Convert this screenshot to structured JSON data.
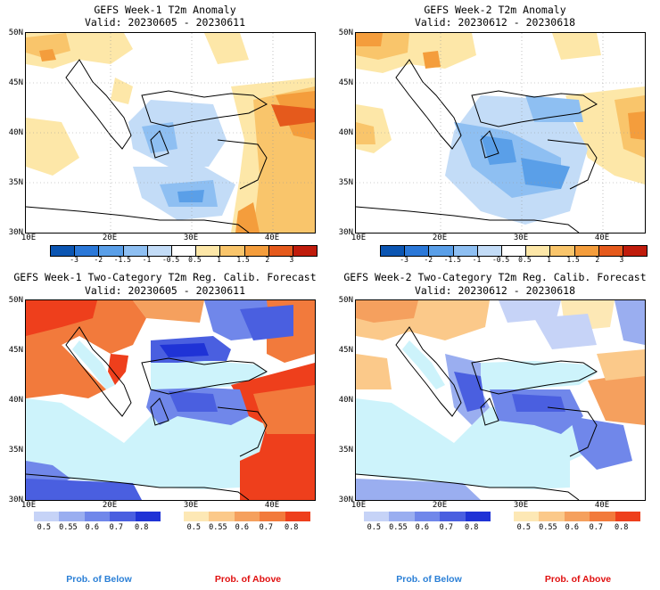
{
  "panels": [
    {
      "title1": "GEFS Week-1 T2m Anomaly",
      "title2": "Valid: 20230605 - 20230611"
    },
    {
      "title1": "GEFS Week-2 T2m Anomaly",
      "title2": "Valid: 20230612 - 20230618"
    },
    {
      "title1": "GEFS Week-1 Two-Category T2m Reg. Calib. Forecast",
      "title2": "Valid: 20230605 - 20230611"
    },
    {
      "title1": "GEFS Week-2 Two-Category T2m Reg. Calib. Forecast",
      "title2": "Valid: 20230612 - 20230618"
    }
  ],
  "axes": {
    "lat_labels": [
      "50N",
      "45N",
      "40N",
      "35N",
      "30N"
    ],
    "lon_labels": [
      "10E",
      "20E",
      "30E",
      "40E"
    ]
  },
  "anomaly_colorbar": {
    "labels": [
      "-3",
      "-2",
      "-1.5",
      "-1",
      "-0.5",
      "0.5",
      "1",
      "1.5",
      "2",
      "3"
    ],
    "colors": [
      "#0b55b2",
      "#2b78d8",
      "#5a9fe8",
      "#8ebff2",
      "#c3dcf7",
      "#ffffff",
      "#fde7a8",
      "#f9c56b",
      "#f49d3c",
      "#e55a1c",
      "#c01c0c"
    ]
  },
  "prob_below": {
    "labels": [
      "0.5",
      "0.55",
      "0.6",
      "0.7",
      "0.8"
    ],
    "colors": [
      "#c6d3f7",
      "#9aaef0",
      "#7087ea",
      "#4a5fe0",
      "#1f33d6"
    ],
    "caption": "Prob. of Below",
    "caption_color": "#2a7fd6"
  },
  "prob_above": {
    "labels": [
      "0.5",
      "0.55",
      "0.6",
      "0.7",
      "0.8"
    ],
    "colors": [
      "#fde8b5",
      "#fbc98a",
      "#f5a05e",
      "#f27a3c",
      "#ee3f1c"
    ],
    "caption": "Prob. of Above",
    "caption_color": "#e01010"
  },
  "map_colors": {
    "sea_prob": "#cdf3fb",
    "land_prob_default": "#ffffff",
    "anom_white": "#ffffff"
  }
}
